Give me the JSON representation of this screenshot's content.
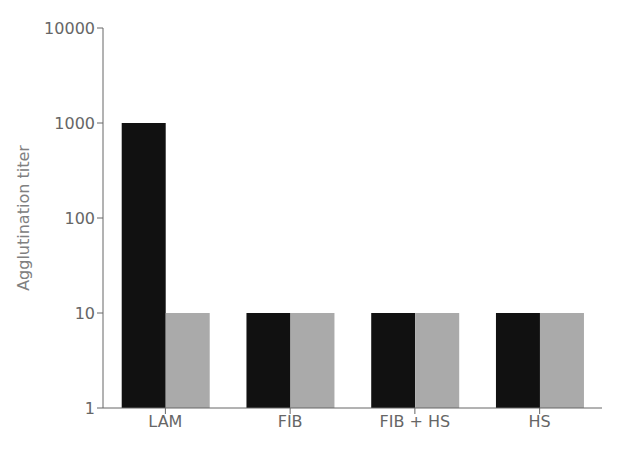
{
  "chart_data": {
    "type": "bar",
    "categories": [
      "LAM",
      "FIB",
      "FIB + HS",
      "HS"
    ],
    "series": [
      {
        "color": "#111111",
        "values": [
          1000,
          10,
          10,
          10
        ]
      },
      {
        "color": "#aaaaaa",
        "values": [
          10,
          10,
          10,
          10
        ]
      }
    ],
    "ylabel": "Agglutination titer",
    "log": "y",
    "ylim": [
      1,
      10000
    ],
    "yticks": [
      1,
      10,
      100,
      1000,
      10000
    ],
    "grid": false
  }
}
